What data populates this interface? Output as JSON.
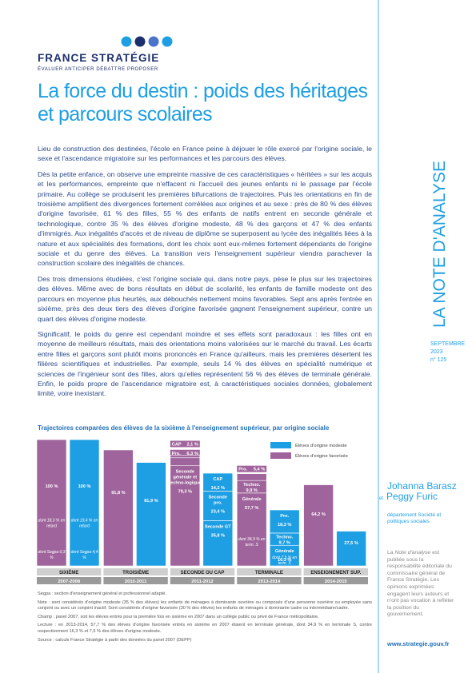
{
  "header": {
    "logo_name": "FRANCE STRATÉGIE",
    "tagline": "ÉVALUER ANTICIPER DÉBATTRE PROPOSER"
  },
  "title": "La force du destin : poids des héritages et parcours scolaires",
  "paragraphs": [
    "Lieu de construction des destinées, l'école en France peine à déjouer le rôle exercé par l'origine sociale, le sexe et l'ascendance migratoire sur les performances et les parcours des élèves.",
    "Dès la petite enfance, on observe une empreinte massive de ces caractéristiques « héritées » sur les acquis et les performances, empreinte que n'effacent ni l'accueil des jeunes enfants ni le passage par l'école primaire. Au collège se produisent les premières bifurcations de trajectoires. Puis les orientations en fin de troisième amplifient des divergences fortement corrélées aux origines et au sexe : près de 80 % des élèves d'origine favorisée, 61 % des filles, 55 % des enfants de natifs entrent en seconde générale et technologique, contre 35 % des élèves d'origine modeste, 48 % des garçons et 47 % des enfants d'immigrés. Aux inégalités d'accès et de niveau de diplôme se superposent au lycée des inégalités liées à la nature et aux spécialités des formations, dont les choix sont eux-mêmes fortement dépendants de l'origine sociale et du genre des élèves. La transition vers l'enseignement supérieur viendra parachever la construction scolaire des inégalités de chances.",
    "Des trois dimensions étudiées, c'est l'origine sociale qui, dans notre pays, pèse le plus sur les trajectoires des élèves. Même avec de bons résultats en début de scolarité, les enfants de famille modeste ont des parcours en moyenne plus heurtés, aux débouchés nettement moins favorables. Sept ans après l'entrée en sixième, près des deux tiers des élèves d'origine favorisée gagnent l'enseignement supérieur, contre un quart des élèves d'origine modeste.",
    "Significatif, le poids du genre est cependant moindre et ses effets sont paradoxaux : les filles ont en moyenne de meilleurs résultats, mais des orientations moins valorisées sur le marché du travail. Les écarts entre filles et garçons sont plutôt moins prononcés en France qu'ailleurs, mais les premières désertent les filières scientifiques et industrielles. Par exemple, seuls 14 % des élèves en spécialité numérique et sciences de l'ingénieur sont des filles, alors qu'elles représentent 56 % des élèves de terminale générale. Enfin, le poids propre de l'ascendance migratoire est, à caractéristiques sociales données, globalement limité, voire inexistant."
  ],
  "chart_data": {
    "type": "bar",
    "stacked": true,
    "title": "Trajectoires comparées des élèves de la sixième à l'enseignement supérieur, par origine sociale",
    "categories": [
      "SIXIÈME",
      "TROISIÈME",
      "SECONDE OU CAP",
      "TERMINALE",
      "ENSEIGNEMENT SUP."
    ],
    "periods": [
      "2007-2008",
      "2010-2011",
      "2011-2012",
      "2013-2014",
      "2014-2015"
    ],
    "series": [
      {
        "name": "Élèves d'origine modeste",
        "color": "#1e9fe3",
        "stacks": [
          [
            {
              "value": 100,
              "value_label": "100 %",
              "notes": [
                "dont 19,4 % en retard",
                "dont Segpa 4,4 %"
              ]
            }
          ],
          [
            {
              "value": 81.9,
              "value_label": "81,9 %"
            }
          ],
          [
            {
              "label": "Seconde GT",
              "value": 35.8,
              "value_label": "35,8 %"
            },
            {
              "label": "Seconde pro.",
              "value": 23.4,
              "value_label": "23,4 %"
            },
            {
              "label": "CAP",
              "value": 14.2,
              "value_label": "14,2 %"
            }
          ],
          [
            {
              "label": "Générale",
              "value": 16.3,
              "value_label": "16,3 %",
              "notes": [
                "dont 7,5 % en term. S"
              ]
            },
            {
              "label": "Techno.",
              "value": 9.7,
              "value_label": "9,7 %"
            },
            {
              "label": "Pro.",
              "value": 18.3,
              "value_label": "18,3 %"
            }
          ],
          [
            {
              "value": 27.5,
              "value_label": "27,5 %"
            }
          ]
        ]
      },
      {
        "name": "Élèves d'origine favorisée",
        "color": "#a0649c",
        "stacks": [
          [
            {
              "value": 100,
              "value_label": "100 %",
              "notes": [
                "dont 18,3 % en retard",
                "dont Segpa 0,3 %"
              ]
            }
          ],
          [
            {
              "value": 91.8,
              "value_label": "91,8 %"
            }
          ],
          [
            {
              "label": "Seconde générale et techno-logique",
              "value": 79.3,
              "value_label": "79,3 %"
            },
            {
              "label": "Pro.",
              "value": 6.3,
              "value_label": "6,3 %"
            },
            {
              "label": "CAP",
              "value": 2.1,
              "value_label": "2,1 %"
            }
          ],
          [
            {
              "label": "Générale",
              "value": 57.7,
              "value_label": "57,7 %",
              "notes": [
                "dont 34,9 % en term. S"
              ]
            },
            {
              "label": "Techno.",
              "value": 9.9,
              "value_label": "9,9 %"
            },
            {
              "label": "Pro.",
              "value": 5.4,
              "value_label": "5,4 %"
            }
          ],
          [
            {
              "value": 64.2,
              "value_label": "64,2 %"
            }
          ]
        ]
      }
    ]
  },
  "chart_notes": [
    "Segpa : section d'enseignement général et professionnel adapté.",
    "Note : sont considérés d'origine modeste (35 % des élèves) les enfants de ménages à dominante ouvrière ou composés d'une personne ouvrière ou employée sans conjoint ou avec un conjoint inactif. Sont considérés d'origine favorisée (30 % des élèves) les enfants de ménages à dominante cadre ou intermédiaire/cadre.",
    "Champ : panel 2007, soit les élèves entrés pour la première fois en sixième en 2007 dans un collège public ou privé de France métropolitaine.",
    "Lecture : en 2013-2014, 57,7 % des élèves d'origine favorisée entrés en sixième en 2007 étaient en terminale générale, dont 34,9 % en terminale S, contre respectivement 16,3 % et 7,5 % des élèves d'origine modeste.",
    "Source : calculs France Stratégie à partir des données du panel 2007 (DEPP)"
  ],
  "sidebar": {
    "series_name": "LA NOTE D'ANALYSE",
    "month": "SEPTEMBRE",
    "year": "2023",
    "issue": "n° 125",
    "authors": [
      "Johanna Barasz",
      "Peggy Furic"
    ],
    "author_joiner": "et",
    "department": "département Société et politiques sociales",
    "about": [
      "La ",
      "Note d'analyse",
      " est publiée sous la responsabilité éditoriale du commissaire général de France Stratégie. Les opinions exprimées engagent leurs auteurs et n'ont pas vocation à refléter la position du gouvernement."
    ],
    "website": "www.strategie.gouv.fr"
  }
}
